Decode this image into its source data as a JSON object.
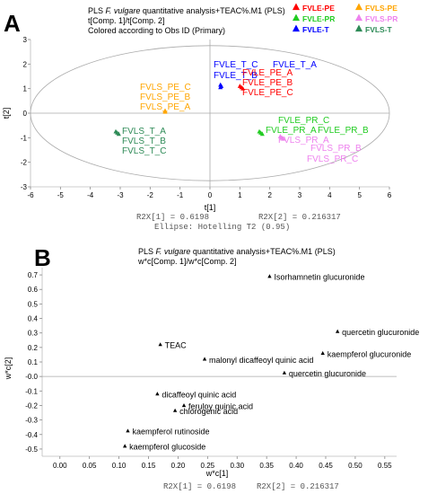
{
  "chart_data": [
    {
      "type": "scatter",
      "panel_label": "A",
      "title_line1_prefix": "PLS ",
      "title_line1_species": "F. vulgare",
      "title_line1_suffix": " quantitative analysis+TEAC%.M1 (PLS)",
      "title_line2": "t[Comp. 1]/t[Comp. 2]",
      "title_line3": "Colored according to Obs ID (Primary)",
      "xlabel": "t[1]",
      "ylabel": "t[2]",
      "xlim": [
        -6,
        6
      ],
      "ylim": [
        -3,
        3
      ],
      "xticks": [
        -6,
        -5,
        -4,
        -3,
        -2,
        -1,
        0,
        1,
        2,
        3,
        4,
        5,
        6
      ],
      "yticks": [
        3,
        2,
        1,
        0,
        -1,
        -2,
        -3
      ],
      "footer_r2x1": "R2X[1] = 0.6198",
      "footer_r2x2": "R2X[2] = 0.216317",
      "footer_ellipse": "Ellipse: Hotelling T2 (0.95)",
      "grid": false,
      "legend_position": "top-right",
      "legend": [
        {
          "label": "FVLE-PE",
          "color": "#ff0000"
        },
        {
          "label": "FVLS-PE",
          "color": "#ffa500"
        },
        {
          "label": "FVLE-PR",
          "color": "#22cc22"
        },
        {
          "label": "FVLS-PR",
          "color": "#ee82ee"
        },
        {
          "label": "FVLE-T",
          "color": "#0000ff"
        },
        {
          "label": "FVLS-T",
          "color": "#2e8b57"
        }
      ],
      "ellipse_semi_axes": [
        6.0,
        2.75
      ],
      "series": [
        {
          "group": "FVLE-T",
          "color": "#0000ff",
          "points": [
            {
              "x": 0.35,
              "y": 1.15,
              "label": "FVLE_T_C"
            },
            {
              "x": 0.38,
              "y": 1.1,
              "label": "FVLE_T_B"
            },
            {
              "x": 0.35,
              "y": 1.05,
              "label": "FVLE_T_A"
            }
          ]
        },
        {
          "group": "FVLE-PE",
          "color": "#ff0000",
          "points": [
            {
              "x": 1.0,
              "y": 1.1,
              "label": "FVLE_PE_A"
            },
            {
              "x": 1.05,
              "y": 1.05,
              "label": "FVLE_PE_B"
            },
            {
              "x": 1.1,
              "y": 1.0,
              "label": "FVLE_PE_C"
            }
          ]
        },
        {
          "group": "FVLS-PE",
          "color": "#ffa500",
          "points": [
            {
              "x": -1.5,
              "y": 0.05,
              "label": "FVLS_PE_C"
            },
            {
              "x": -1.5,
              "y": 0.08,
              "label": "FVLS_PE_B"
            },
            {
              "x": -1.5,
              "y": 0.1,
              "label": "FVLS_PE_A"
            }
          ]
        },
        {
          "group": "FVLS-T",
          "color": "#2e8b57",
          "points": [
            {
              "x": -3.15,
              "y": -0.75,
              "label": "FVLS_T_A"
            },
            {
              "x": -3.1,
              "y": -0.8,
              "label": "FVLS_T_B"
            },
            {
              "x": -3.05,
              "y": -0.85,
              "label": "FVLS_T_C"
            }
          ]
        },
        {
          "group": "FVLE-PR",
          "color": "#22cc22",
          "points": [
            {
              "x": 1.65,
              "y": -0.75,
              "label": "FVLE_PR_C"
            },
            {
              "x": 1.7,
              "y": -0.8,
              "label": "FVLE_PR_A"
            },
            {
              "x": 1.75,
              "y": -0.85,
              "label": "FVLE_PR_B"
            }
          ]
        },
        {
          "group": "FVLS-PR",
          "color": "#ee82ee",
          "points": [
            {
              "x": 2.35,
              "y": -0.95,
              "label": "FVLS_PR_A"
            },
            {
              "x": 2.4,
              "y": -1.0,
              "label": "FVLS_PR_B"
            },
            {
              "x": 2.45,
              "y": -1.05,
              "label": "FVLS_PR_C"
            }
          ]
        }
      ]
    },
    {
      "type": "scatter",
      "panel_label": "B",
      "title_line1_prefix": "PLS ",
      "title_line1_species": "F. vulgare",
      "title_line1_suffix": " quantitative analysis+TEAC%.M1 (PLS)",
      "title_line2": "w*c[Comp. 1]/w*c[Comp. 2]",
      "xlabel": "w*c[1]",
      "ylabel": "w*c[2]",
      "xlim": [
        -0.03,
        0.57
      ],
      "ylim": [
        -0.55,
        0.75
      ],
      "xticks": [
        "0.00",
        "0.05",
        "0.10",
        "0.15",
        "0.20",
        "0.25",
        "0.30",
        "0.35",
        "0.40",
        "0.45",
        "0.50",
        "0.55"
      ],
      "yticks": [
        "0.7",
        "0.6",
        "0.5",
        "0.4",
        "0.3",
        "0.2",
        "0.1",
        "-0.0",
        "-0.1",
        "-0.2",
        "-0.3",
        "-0.4",
        "-0.5"
      ],
      "footer_r2x1": "R2X[1] = 0.6198",
      "footer_r2x2": "R2X[2] = 0.216317",
      "grid": false,
      "marker_color": "#000000",
      "points": [
        {
          "x": 0.355,
          "y": 0.69,
          "label": "Isorhamnetin glucuronide"
        },
        {
          "x": 0.47,
          "y": 0.31,
          "label": "quercetin glucuronide"
        },
        {
          "x": 0.17,
          "y": 0.22,
          "label": "TEAC"
        },
        {
          "x": 0.445,
          "y": 0.16,
          "label": "kaempferol glucuronide"
        },
        {
          "x": 0.245,
          "y": 0.12,
          "label": "malonyl dicaffeoyl quinic acid"
        },
        {
          "x": 0.38,
          "y": 0.025,
          "label": "quercetin glucuronide"
        },
        {
          "x": 0.165,
          "y": -0.12,
          "label": "dicaffeoyl  quinic acid"
        },
        {
          "x": 0.21,
          "y": -0.2,
          "label": "feruloy quinic acid"
        },
        {
          "x": 0.195,
          "y": -0.235,
          "label": "chlorogenic acid"
        },
        {
          "x": 0.115,
          "y": -0.375,
          "label": "kaempferol rutinoside"
        },
        {
          "x": 0.11,
          "y": -0.48,
          "label": "kaempferol glucoside"
        }
      ]
    }
  ]
}
